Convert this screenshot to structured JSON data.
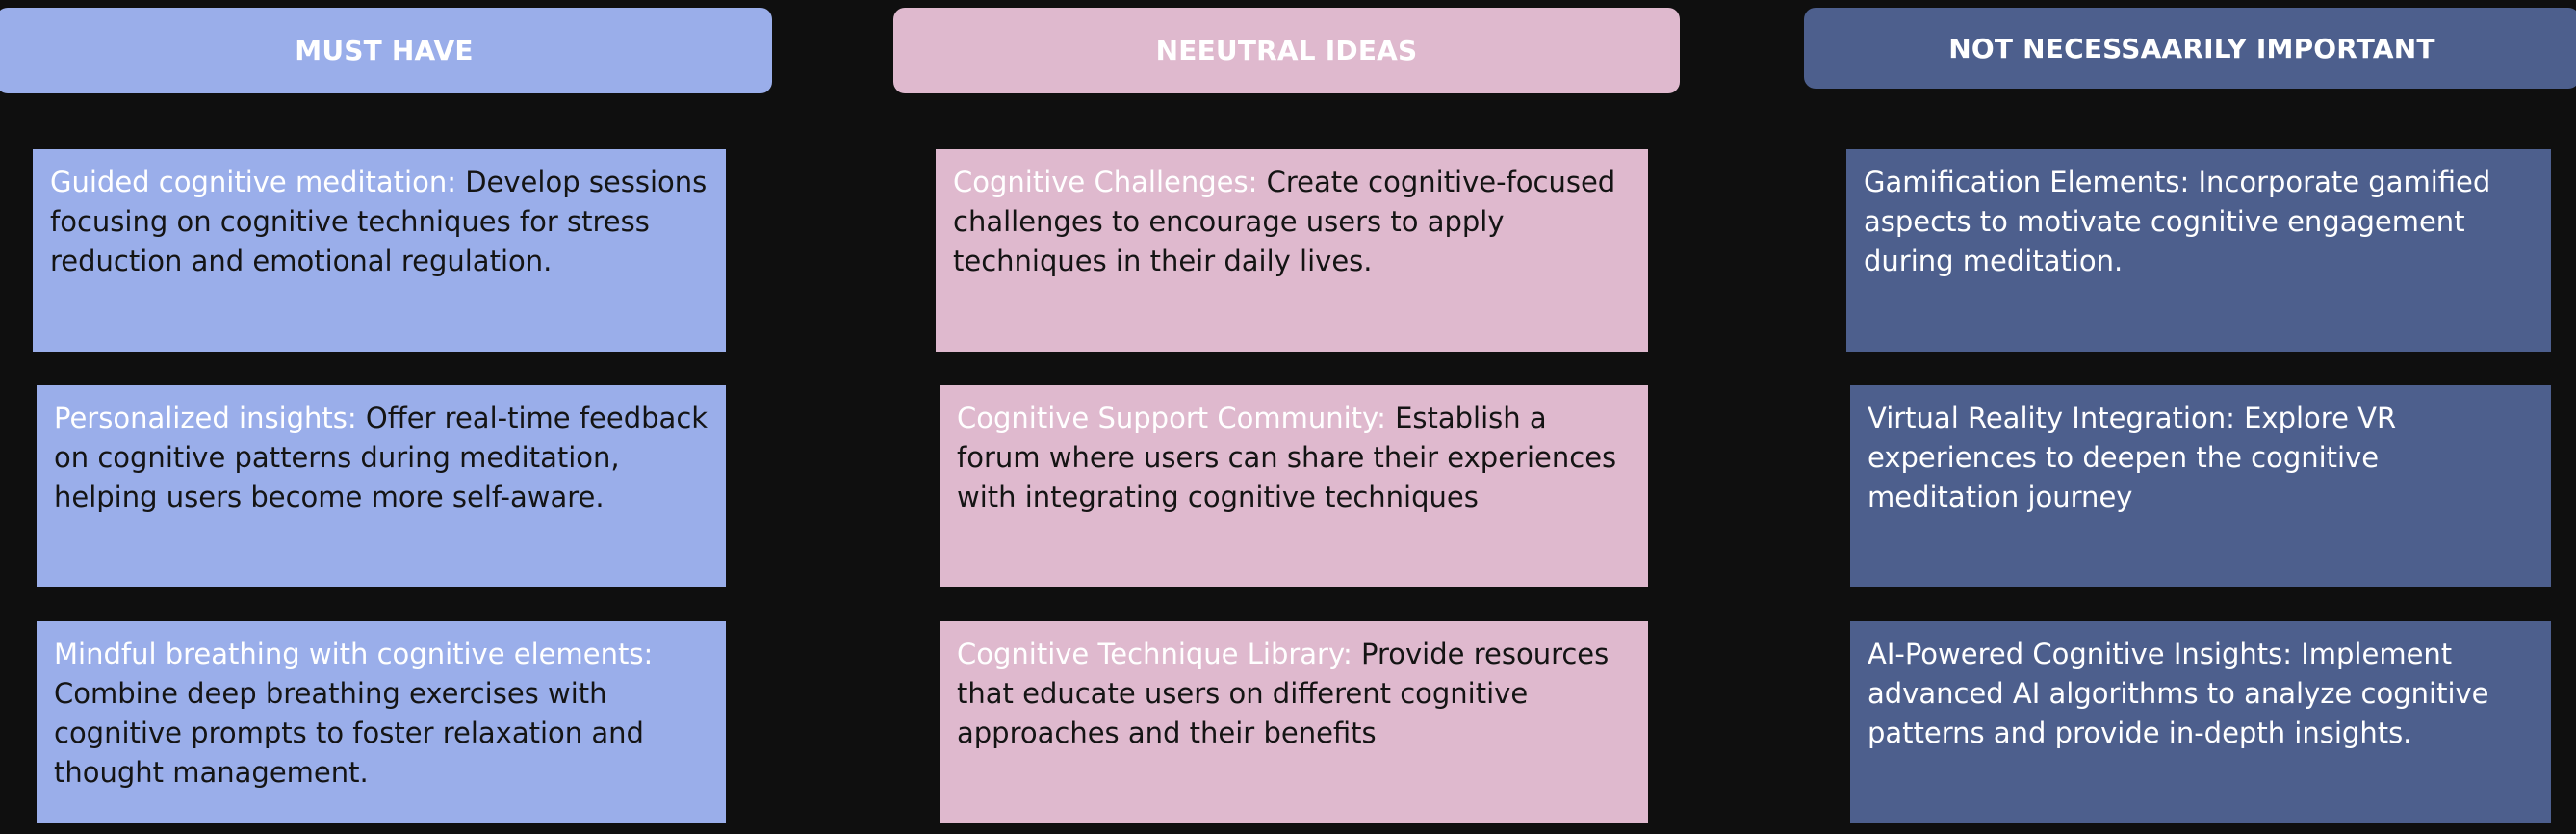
{
  "columns": [
    {
      "header": "MUST HAVE",
      "color": "#9aaeea",
      "cards": [
        {
          "lead": "Guided cognitive meditation: ",
          "body": "Develop sessions focusing on cognitive techniques for stress reduction and emotional regulation."
        },
        {
          "lead": "Personalized insights: ",
          "body": "Offer real-time feedback on cognitive patterns during meditation, helping users become more self-aware."
        },
        {
          "lead": "Mindful breathing with cognitive elements: ",
          "body": "Combine deep breathing exercises with cognitive prompts to foster relaxation and thought management."
        }
      ]
    },
    {
      "header": "NEEUTRAL IDEAS",
      "color": "#dfb9ce",
      "cards": [
        {
          "lead": "Cognitive Challenges: ",
          "body": "Create cognitive-focused challenges to encourage users to apply techniques in their daily lives."
        },
        {
          "lead": "Cognitive Support Community: ",
          "body": "Establish a forum where users can share their experiences with integrating cognitive techniques"
        },
        {
          "lead": "Cognitive Technique Library: ",
          "body": "Provide resources that educate users on different cognitive approaches and their benefits"
        }
      ]
    },
    {
      "header": "NOT NECESSAARILY IMPORTANT",
      "color": "#4d5f8d",
      "cards": [
        {
          "lead": "",
          "body": "Gamification Elements: Incorporate gamified aspects to motivate cognitive engagement during meditation."
        },
        {
          "lead": "",
          "body": "Virtual Reality Integration: Explore VR experiences to deepen the cognitive meditation journey"
        },
        {
          "lead": "",
          "body": "AI-Powered Cognitive Insights: Implement advanced AI algorithms to analyze cognitive patterns and provide in-depth insights."
        }
      ]
    }
  ]
}
